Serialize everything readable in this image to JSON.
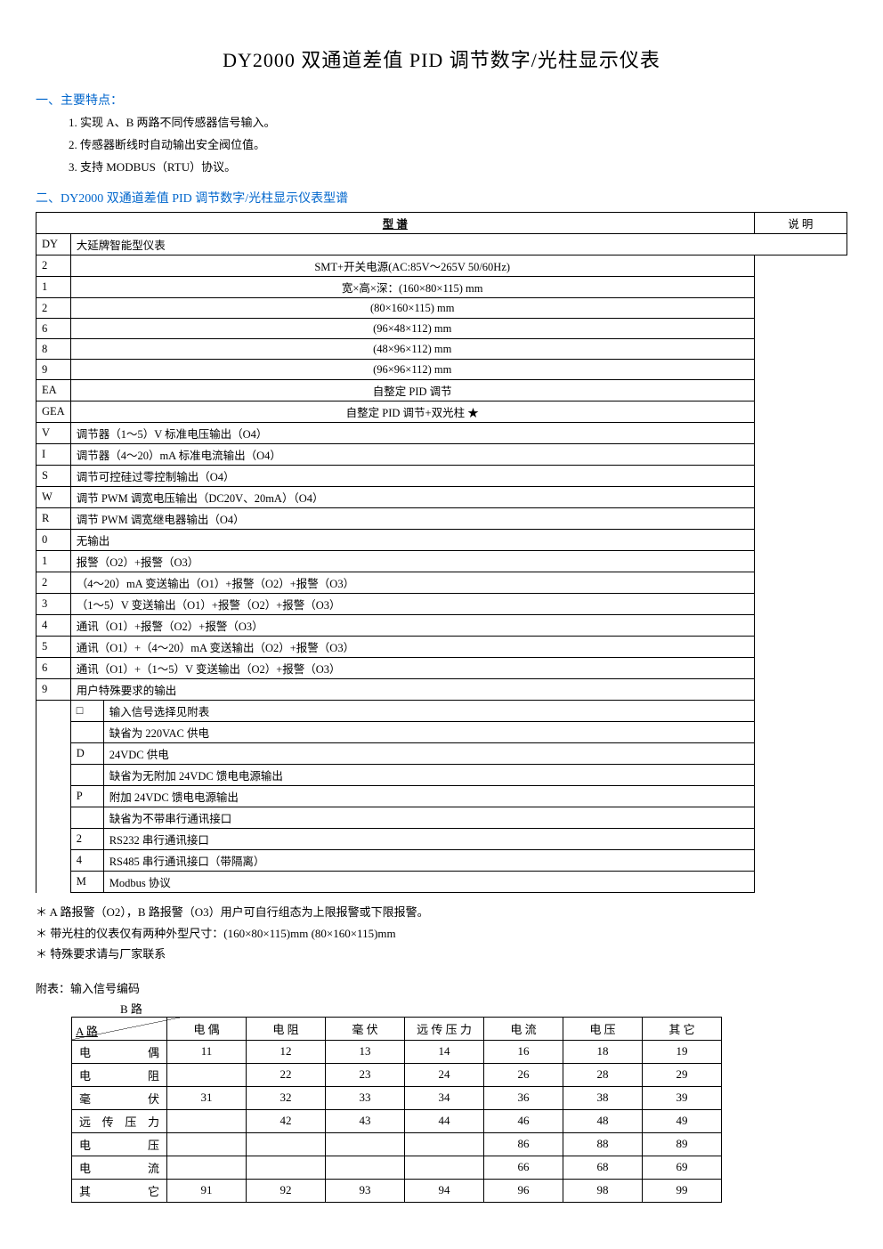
{
  "title": "DY2000 双通道差值 PID 调节数字/光柱显示仪表",
  "section1": {
    "header": "一、主要特点：",
    "items": [
      "实现 A、B 两路不同传感器信号输入。",
      "传感器断线时自动输出安全阀位值。",
      "支持 MODBUS（RTU）协议。"
    ]
  },
  "section2": {
    "header": "二、DY2000 双通道差值 PID 调节数字/光柱显示仪表型谱"
  },
  "spec": {
    "col_model": "型    谱",
    "col_desc": "说    明",
    "rows": [
      {
        "codes": [
          "DY"
        ],
        "desc": "大延牌智能型仪表"
      },
      {
        "codes": [
          "",
          "2"
        ],
        "desc": "SMT+开关电源(AC:85V～265V  50/60Hz)"
      },
      {
        "codes": [
          "",
          "",
          "1"
        ],
        "desc": "宽×高×深：(160×80×115) mm"
      },
      {
        "codes": [
          "",
          "",
          "2"
        ],
        "desc": "(80×160×115) mm"
      },
      {
        "codes": [
          "",
          "",
          "6"
        ],
        "desc": "(96×48×112) mm"
      },
      {
        "codes": [
          "",
          "",
          "8"
        ],
        "desc": "(48×96×112) mm"
      },
      {
        "codes": [
          "",
          "",
          "9"
        ],
        "desc": "(96×96×112) mm"
      },
      {
        "codes": [
          "",
          "",
          "",
          "EA"
        ],
        "desc": "自整定 PID 调节"
      },
      {
        "codes": [
          "",
          "",
          "",
          "GEA"
        ],
        "desc": "自整定 PID 调节+双光柱       ★"
      },
      {
        "codes": [
          "",
          "",
          "",
          "",
          "V"
        ],
        "desc": "调节器（1～5）V 标准电压输出（O4）"
      },
      {
        "codes": [
          "",
          "",
          "",
          "",
          "I"
        ],
        "desc": "调节器（4～20）mA 标准电流输出（O4）"
      },
      {
        "codes": [
          "",
          "",
          "",
          "",
          "S"
        ],
        "desc": "调节可控硅过零控制输出（O4）"
      },
      {
        "codes": [
          "",
          "",
          "",
          "",
          "W"
        ],
        "desc": "调节 PWM 调宽电压输出（DC20V、20mA）（O4）"
      },
      {
        "codes": [
          "",
          "",
          "",
          "",
          "R"
        ],
        "desc": "调节 PWM 调宽继电器输出（O4）"
      },
      {
        "codes": [
          "",
          "",
          "",
          "",
          "",
          "0"
        ],
        "desc": "无输出"
      },
      {
        "codes": [
          "",
          "",
          "",
          "",
          "",
          "1"
        ],
        "desc": "报警（O2）+报警（O3）"
      },
      {
        "codes": [
          "",
          "",
          "",
          "",
          "",
          "2"
        ],
        "desc": "（4～20）mA 变送输出（O1）+报警（O2）+报警（O3）"
      },
      {
        "codes": [
          "",
          "",
          "",
          "",
          "",
          "3"
        ],
        "desc": "（1～5）V 变送输出（O1）+报警（O2）+报警（O3）"
      },
      {
        "codes": [
          "",
          "",
          "",
          "",
          "",
          "4"
        ],
        "desc": "通讯（O1）+报警（O2）+报警（O3）"
      },
      {
        "codes": [
          "",
          "",
          "",
          "",
          "",
          "5"
        ],
        "desc": "通讯（O1）+（4～20）mA 变送输出（O2）+报警（O3）"
      },
      {
        "codes": [
          "",
          "",
          "",
          "",
          "",
          "6"
        ],
        "desc": "通讯（O1）+（1～5）V 变送输出（O2）+报警（O3）"
      },
      {
        "codes": [
          "",
          "",
          "",
          "",
          "",
          "9"
        ],
        "desc": "用户特殊要求的输出"
      },
      {
        "codes": [
          "",
          "",
          "",
          "",
          "",
          "",
          "□",
          "□"
        ],
        "desc": "输入信号选择见附表"
      },
      {
        "codes": [
          "",
          "",
          "",
          "",
          "",
          "",
          "",
          "",
          ""
        ],
        "desc": "缺省为 220VAC 供电"
      },
      {
        "codes": [
          "",
          "",
          "",
          "",
          "",
          "",
          "",
          "",
          "D"
        ],
        "desc": "24VDC 供电"
      },
      {
        "codes": [
          "",
          "",
          "",
          "",
          "",
          "",
          "",
          "",
          "",
          ""
        ],
        "desc": "缺省为无附加 24VDC 馈电电源输出"
      },
      {
        "codes": [
          "",
          "",
          "",
          "",
          "",
          "",
          "",
          "",
          "",
          "P"
        ],
        "desc": "附加 24VDC 馈电电源输出"
      },
      {
        "codes": [
          "",
          "",
          "",
          "",
          "",
          "",
          "",
          "",
          "",
          "",
          ""
        ],
        "desc": "缺省为不带串行通讯接口"
      },
      {
        "codes": [
          "",
          "",
          "",
          "",
          "",
          "",
          "",
          "",
          "",
          "",
          "2"
        ],
        "desc": "RS232 串行通讯接口"
      },
      {
        "codes": [
          "",
          "",
          "",
          "",
          "",
          "",
          "",
          "",
          "",
          "",
          "4"
        ],
        "desc": "RS485 串行通讯接口（带隔离）"
      },
      {
        "codes": [
          "",
          "",
          "",
          "",
          "",
          "",
          "",
          "",
          "",
          "",
          "",
          "M"
        ],
        "desc": "Modbus 协议"
      }
    ]
  },
  "notes": [
    "＊ A 路报警（O2），B 路报警（O3）用户可自行组态为上限报警或下限报警。",
    "＊ 带光柱的仪表仅有两种外型尺寸：(160×80×115)mm   (80×160×115)mm",
    "＊ 特殊要求请与厂家联系"
  ],
  "appendix": {
    "label": "附表：输入信号编码",
    "sub": "B 路",
    "a_label": "A 路",
    "columns": [
      "电    偶",
      "电    阻",
      "毫    伏",
      "远 传 压 力",
      "电    流",
      "电    压",
      "其    它"
    ],
    "rows": [
      {
        "h": "电      偶",
        "cells": [
          "11",
          "12",
          "13",
          "14",
          "16",
          "18",
          "19"
        ]
      },
      {
        "h": "电      阻",
        "cells": [
          "",
          "22",
          "23",
          "24",
          "26",
          "28",
          "29"
        ]
      },
      {
        "h": "毫      伏",
        "cells": [
          "31",
          "32",
          "33",
          "34",
          "36",
          "38",
          "39"
        ]
      },
      {
        "h": "远 传 压 力",
        "cells": [
          "",
          "42",
          "43",
          "44",
          "46",
          "48",
          "49"
        ]
      },
      {
        "h": "电      压",
        "cells": [
          "",
          "",
          "",
          "",
          "86",
          "88",
          "89"
        ]
      },
      {
        "h": "电      流",
        "cells": [
          "",
          "",
          "",
          "",
          "66",
          "68",
          "69"
        ]
      },
      {
        "h": "其      它",
        "cells": [
          "91",
          "92",
          "93",
          "94",
          "96",
          "98",
          "99"
        ]
      }
    ]
  }
}
